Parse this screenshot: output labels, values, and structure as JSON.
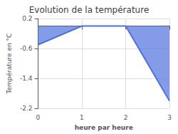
{
  "chart_data": {
    "type": "area",
    "title": "Evolution de la température",
    "xlabel": "heure par heure",
    "ylabel": "Température en °C",
    "x": [
      0,
      1,
      2,
      3
    ],
    "values": [
      -0.5,
      0.0,
      0.0,
      -2.0
    ],
    "baseline": 0.0,
    "xlim": [
      0,
      3
    ],
    "xticks": [
      0,
      1,
      2,
      3
    ],
    "ylim": [
      -2.2,
      0.2
    ],
    "yticks": [
      0.2,
      -0.6,
      -1.4,
      -2.2
    ],
    "grid": true
  }
}
